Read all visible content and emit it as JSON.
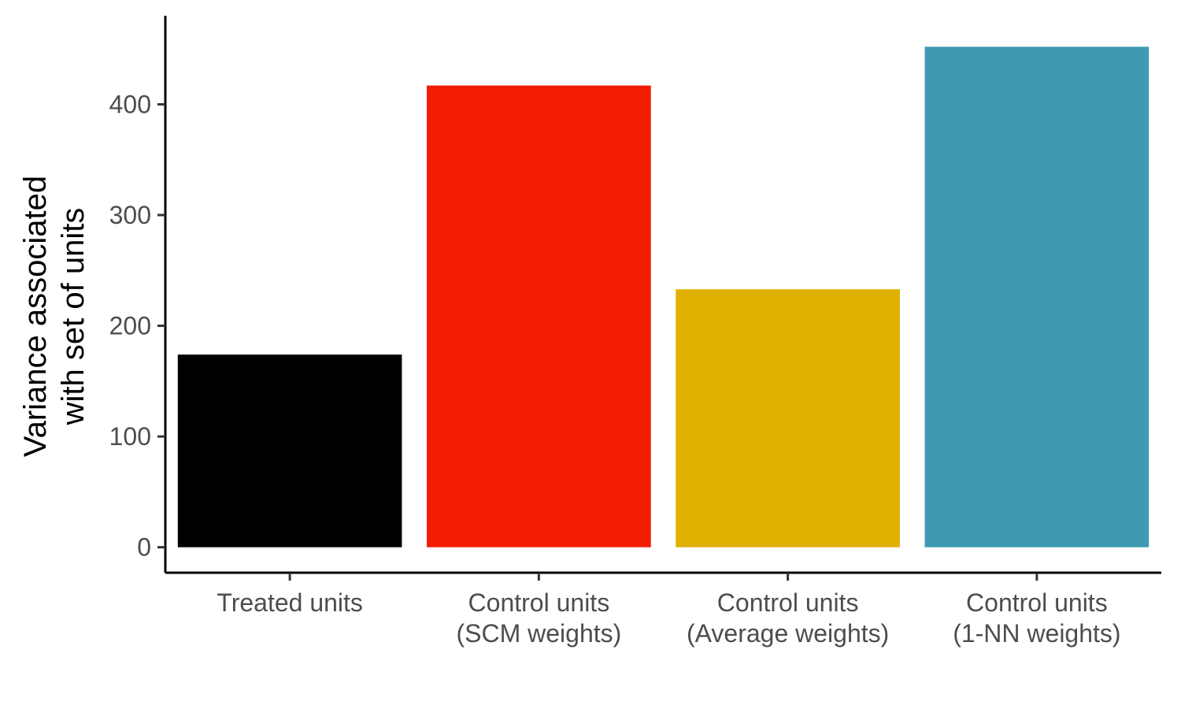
{
  "chart_data": {
    "type": "bar",
    "categories": [
      [
        "Treated units"
      ],
      [
        "Control units",
        "(SCM weights)"
      ],
      [
        "Control units",
        "(Average weights)"
      ],
      [
        "Control units",
        "(1-NN weights)"
      ]
    ],
    "values": [
      174,
      417,
      233,
      452
    ],
    "colors": [
      "#000000",
      "#f21d00",
      "#e0b000",
      "#3d9ab2"
    ],
    "title": "",
    "xlabel": "",
    "ylabel": [
      "Variance associated",
      "with set of units"
    ],
    "ylim": [
      -23,
      480
    ],
    "yticks": [
      0,
      100,
      200,
      300,
      400
    ],
    "grid": false,
    "legend": "none"
  }
}
